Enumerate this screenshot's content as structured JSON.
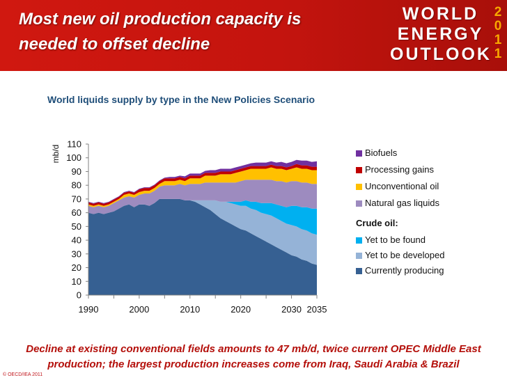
{
  "slide": {
    "title_lines": [
      "Most new oil production capacity is",
      "needed to offset decline"
    ],
    "logo_lines": [
      "WORLD",
      "ENERGY",
      "OUTLOOK"
    ],
    "logo_year": [
      "2",
      "0",
      "1",
      "1"
    ],
    "footer_lines": [
      "Decline at existing conventional fields amounts to 47 mb/d, twice current OPEC Middle East",
      "production; the largest production increases come from Iraq, Saudi Arabia & Brazil"
    ],
    "copyright": "© OECD/IEA 2011"
  },
  "chart_data": {
    "type": "area",
    "stacked": true,
    "title": "World liquids supply by type in the New Policies Scenario",
    "ylabel": "mb/d",
    "xlabel": "",
    "ylim": [
      0,
      110
    ],
    "yticks": [
      0,
      10,
      20,
      30,
      40,
      50,
      60,
      70,
      80,
      90,
      100,
      110
    ],
    "xlim": [
      1990,
      2035
    ],
    "xticks": [
      1990,
      2000,
      2010,
      2020,
      2030,
      2035
    ],
    "x": [
      1990,
      1991,
      1992,
      1993,
      1994,
      1995,
      1996,
      1997,
      1998,
      1999,
      2000,
      2001,
      2002,
      2003,
      2004,
      2005,
      2006,
      2007,
      2008,
      2009,
      2010,
      2011,
      2012,
      2013,
      2014,
      2015,
      2016,
      2017,
      2018,
      2019,
      2020,
      2021,
      2022,
      2023,
      2024,
      2025,
      2026,
      2027,
      2028,
      2029,
      2030,
      2031,
      2032,
      2033,
      2034,
      2035
    ],
    "series": [
      {
        "name": "Currently producing",
        "color": "#366092",
        "values": [
          60,
          59,
          60,
          59,
          60,
          61,
          63,
          65,
          66,
          64,
          66,
          66,
          65,
          67,
          70,
          70,
          70,
          70,
          70,
          69,
          69,
          68,
          66,
          64,
          62,
          59,
          56,
          54,
          52,
          50,
          48,
          47,
          45,
          43,
          41,
          39,
          37,
          35,
          33,
          31,
          29,
          28,
          26,
          25,
          23,
          22
        ]
      },
      {
        "name": "Yet to be developed",
        "color": "#95b3d7",
        "values": [
          0,
          0,
          0,
          0,
          0,
          0,
          0,
          0,
          0,
          0,
          0,
          0,
          0,
          0,
          0,
          0,
          0,
          0,
          0,
          0,
          0,
          1,
          3,
          5,
          7,
          10,
          12,
          14,
          15,
          16,
          17,
          18,
          18,
          19,
          19,
          20,
          21,
          21,
          21,
          21,
          22,
          22,
          22,
          22,
          22,
          22
        ]
      },
      {
        "name": "Yet to be found",
        "color": "#00b0f0",
        "values": [
          0,
          0,
          0,
          0,
          0,
          0,
          0,
          0,
          0,
          0,
          0,
          0,
          0,
          0,
          0,
          0,
          0,
          0,
          0,
          0,
          0,
          0,
          0,
          0,
          0,
          0,
          0,
          0,
          1,
          2,
          3,
          4,
          5,
          6,
          7,
          8,
          9,
          10,
          11,
          12,
          14,
          15,
          16,
          17,
          18,
          19
        ]
      },
      {
        "name": "Natural gas liquids",
        "color": "#9d8bbf",
        "values": [
          5,
          5,
          5,
          5,
          5,
          6,
          6,
          6,
          6,
          7,
          7,
          8,
          9,
          9,
          9,
          10,
          10,
          10,
          11,
          11,
          12,
          12,
          12,
          13,
          13,
          13,
          14,
          14,
          14,
          14,
          15,
          15,
          16,
          16,
          17,
          17,
          17,
          17,
          18,
          18,
          18,
          18,
          18,
          18,
          18,
          18
        ]
      },
      {
        "name": "Unconventional oil",
        "color": "#ffc000",
        "values": [
          1,
          1,
          1,
          1,
          1,
          1,
          1,
          2,
          2,
          2,
          2,
          2,
          2,
          2,
          2,
          3,
          3,
          3,
          3,
          3,
          4,
          4,
          4,
          5,
          5,
          5,
          6,
          6,
          6,
          7,
          7,
          7,
          8,
          8,
          8,
          8,
          9,
          9,
          9,
          9,
          9,
          10,
          10,
          10,
          10,
          10
        ]
      },
      {
        "name": "Processing gains",
        "color": "#c00000",
        "values": [
          1.5,
          1.5,
          1.5,
          1.5,
          1.5,
          1.5,
          1.5,
          1.5,
          1.5,
          1.5,
          2,
          2,
          2,
          2,
          2,
          2,
          2,
          2,
          2,
          2,
          2,
          2,
          2,
          2,
          2,
          2,
          2,
          2,
          2,
          2,
          2,
          2,
          2,
          2,
          2,
          2,
          2,
          2,
          2,
          2,
          2,
          2.5,
          2.5,
          2.5,
          2.5,
          2.5
        ]
      },
      {
        "name": "Biofuels",
        "color": "#7030a0",
        "values": [
          0.5,
          0.5,
          0.5,
          0.5,
          0.5,
          0.5,
          0.5,
          0.5,
          0.5,
          0.5,
          0.5,
          0.5,
          0.5,
          0.5,
          0.5,
          0.5,
          1,
          1,
          1,
          1.5,
          1.5,
          1.5,
          1.5,
          1.5,
          2,
          2,
          2,
          2,
          2,
          2,
          2,
          2,
          2,
          2.5,
          2.5,
          2.5,
          2.5,
          2.5,
          3,
          3,
          3,
          3,
          3.5,
          3.5,
          3.5,
          4
        ]
      }
    ],
    "legend": {
      "position": "right",
      "entries": [
        "Biofuels",
        "Processing gains",
        "Unconventional oil",
        "Natural gas liquids"
      ],
      "group_heading": "Crude oil:",
      "group_entries": [
        "Yet to be found",
        "Yet to be developed",
        "Currently producing"
      ]
    }
  }
}
